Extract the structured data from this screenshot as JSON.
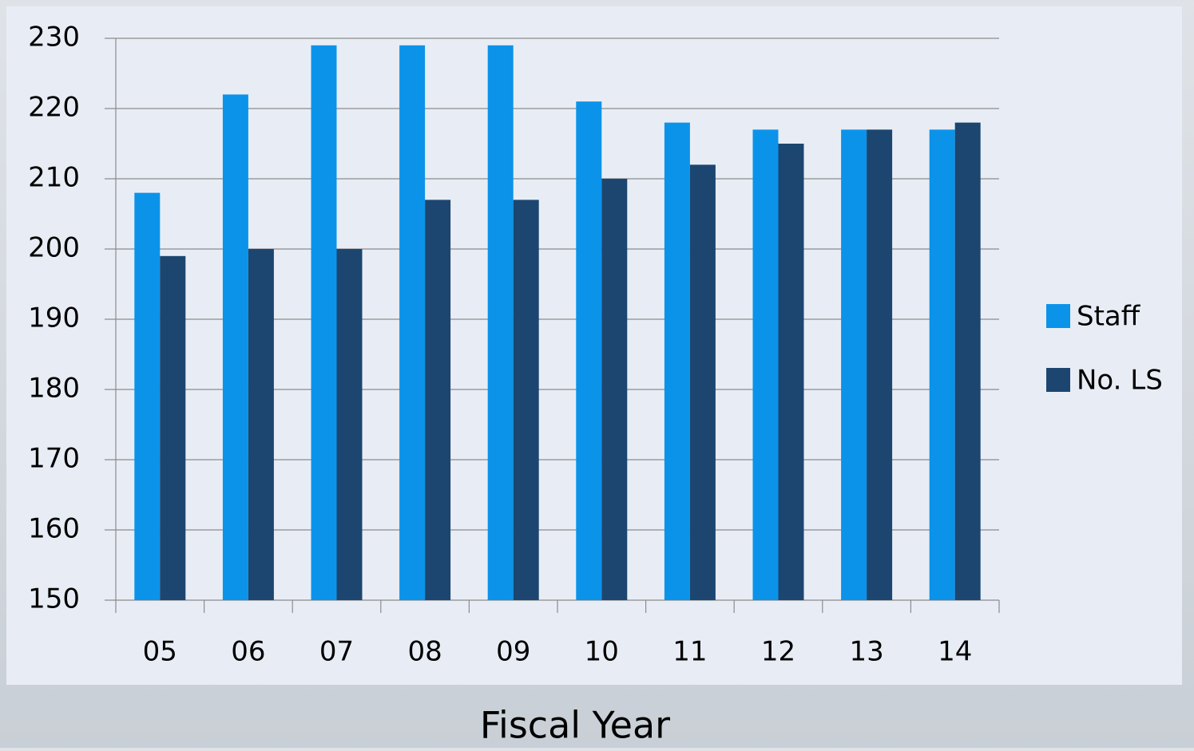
{
  "chart_data": {
    "type": "bar",
    "x_label": "Fiscal Year",
    "categories": [
      "05",
      "06",
      "07",
      "08",
      "09",
      "10",
      "11",
      "12",
      "13",
      "14"
    ],
    "series": [
      {
        "name": "Staff",
        "color": "#0b93ea",
        "values": [
          208,
          222,
          229,
          229,
          229,
          221,
          218,
          217,
          217,
          217
        ]
      },
      {
        "name": "No. LS",
        "color": "#1c4670",
        "values": [
          199,
          200,
          200,
          207,
          207,
          210,
          212,
          215,
          217,
          218
        ]
      }
    ],
    "ylim": [
      150,
      230
    ],
    "yticks": [
      150,
      160,
      170,
      180,
      190,
      200,
      210,
      220,
      230
    ],
    "grid": true,
    "legend": "right"
  }
}
